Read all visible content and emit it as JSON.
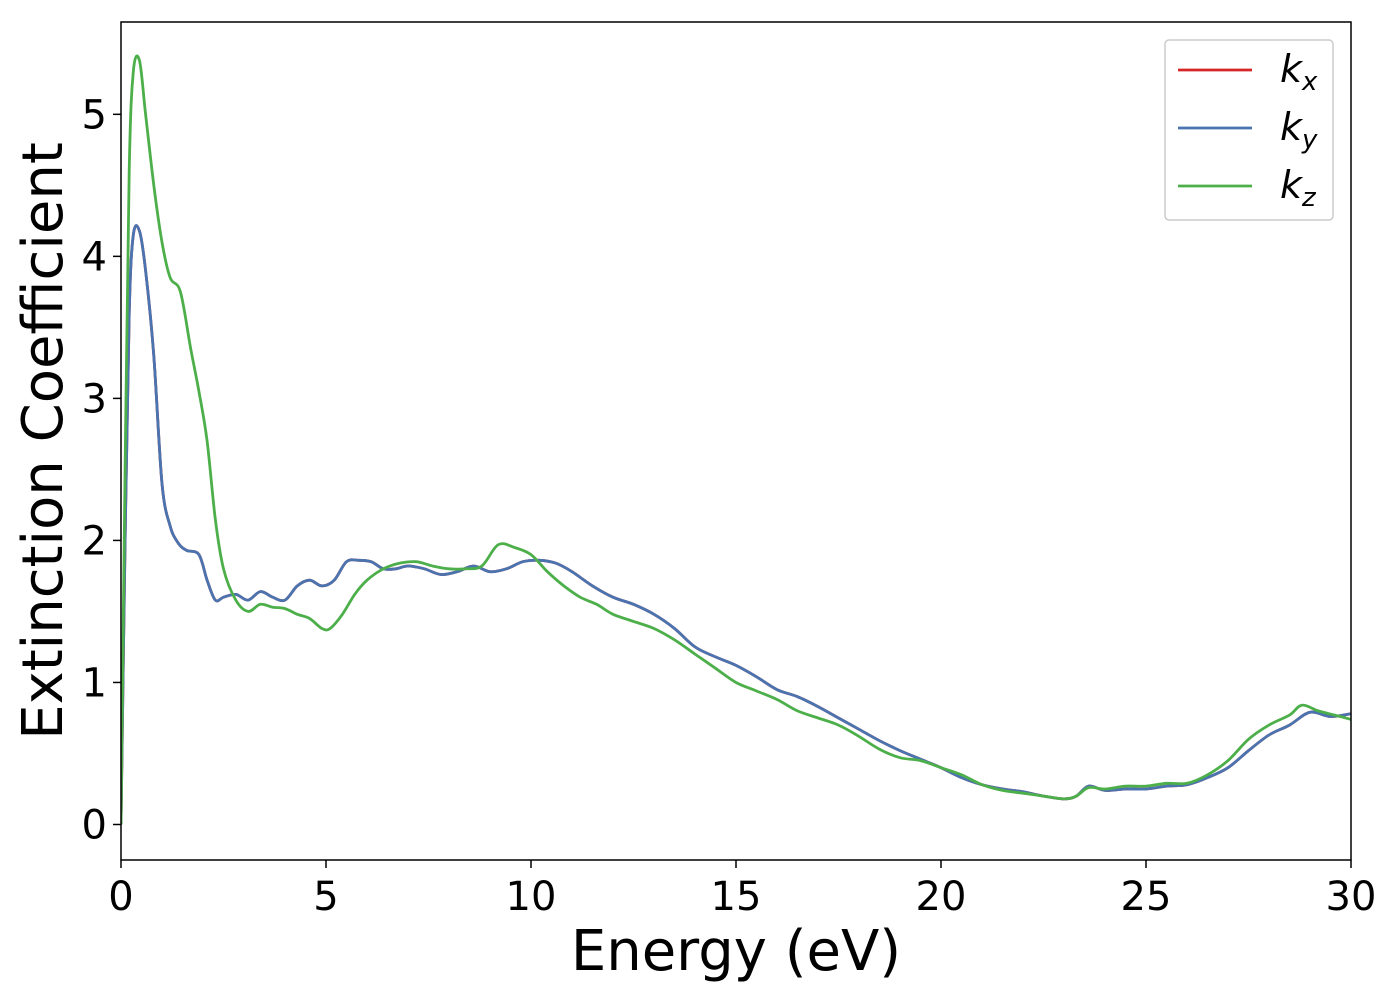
{
  "chart_data": {
    "type": "line",
    "title": "",
    "xlabel": "Energy (eV)",
    "ylabel": "Extinction Coefficient",
    "xlim": [
      0,
      30
    ],
    "ylim": [
      -0.25,
      5.65
    ],
    "xticks": [
      0,
      5,
      10,
      15,
      20,
      25,
      30
    ],
    "yticks": [
      0,
      1,
      2,
      3,
      4,
      5
    ],
    "grid": false,
    "legend_position": "top-right",
    "series": [
      {
        "name": "k_x",
        "label_main": "k",
        "label_sub": "x",
        "color": "#d62728",
        "x": [
          0,
          0.1,
          0.2,
          0.3,
          0.45,
          0.6,
          0.8,
          1.0,
          1.2,
          1.4,
          1.6,
          1.9,
          2.1,
          2.3,
          2.5,
          2.8,
          3.1,
          3.4,
          3.7,
          4.0,
          4.3,
          4.6,
          4.9,
          5.2,
          5.5,
          5.8,
          6.1,
          6.4,
          6.7,
          7.0,
          7.4,
          7.8,
          8.2,
          8.6,
          9.0,
          9.4,
          9.8,
          10.2,
          10.6,
          11.0,
          11.5,
          12.0,
          12.5,
          13.0,
          13.5,
          14.0,
          14.5,
          15.0,
          15.5,
          16.0,
          16.5,
          17.0,
          17.5,
          18.0,
          18.5,
          19.0,
          19.5,
          20.0,
          20.5,
          21.0,
          21.5,
          22.0,
          22.5,
          23.0,
          23.3,
          23.6,
          24.0,
          24.5,
          25.0,
          25.5,
          26.0,
          26.5,
          27.0,
          27.5,
          28.0,
          28.5,
          29.0,
          29.5,
          30.0
        ],
        "y": [
          0.0,
          2.0,
          3.6,
          4.15,
          4.18,
          3.9,
          3.3,
          2.4,
          2.1,
          1.98,
          1.93,
          1.9,
          1.72,
          1.58,
          1.6,
          1.62,
          1.58,
          1.64,
          1.6,
          1.58,
          1.68,
          1.72,
          1.68,
          1.72,
          1.85,
          1.86,
          1.85,
          1.8,
          1.8,
          1.82,
          1.8,
          1.76,
          1.78,
          1.82,
          1.78,
          1.8,
          1.85,
          1.86,
          1.84,
          1.78,
          1.68,
          1.6,
          1.55,
          1.48,
          1.38,
          1.25,
          1.18,
          1.12,
          1.04,
          0.95,
          0.9,
          0.83,
          0.75,
          0.67,
          0.59,
          0.52,
          0.46,
          0.4,
          0.33,
          0.28,
          0.25,
          0.23,
          0.2,
          0.18,
          0.2,
          0.27,
          0.24,
          0.25,
          0.25,
          0.27,
          0.28,
          0.33,
          0.4,
          0.52,
          0.63,
          0.7,
          0.79,
          0.76,
          0.78
        ]
      },
      {
        "name": "k_y",
        "label_main": "k",
        "label_sub": "y",
        "color": "#4a74b0",
        "x": [
          0,
          0.1,
          0.2,
          0.3,
          0.45,
          0.6,
          0.8,
          1.0,
          1.2,
          1.4,
          1.6,
          1.9,
          2.1,
          2.3,
          2.5,
          2.8,
          3.1,
          3.4,
          3.7,
          4.0,
          4.3,
          4.6,
          4.9,
          5.2,
          5.5,
          5.8,
          6.1,
          6.4,
          6.7,
          7.0,
          7.4,
          7.8,
          8.2,
          8.6,
          9.0,
          9.4,
          9.8,
          10.2,
          10.6,
          11.0,
          11.5,
          12.0,
          12.5,
          13.0,
          13.5,
          14.0,
          14.5,
          15.0,
          15.5,
          16.0,
          16.5,
          17.0,
          17.5,
          18.0,
          18.5,
          19.0,
          19.5,
          20.0,
          20.5,
          21.0,
          21.5,
          22.0,
          22.5,
          23.0,
          23.3,
          23.6,
          24.0,
          24.5,
          25.0,
          25.5,
          26.0,
          26.5,
          27.0,
          27.5,
          28.0,
          28.5,
          29.0,
          29.5,
          30.0
        ],
        "y": [
          0.0,
          2.0,
          3.6,
          4.15,
          4.18,
          3.9,
          3.3,
          2.4,
          2.1,
          1.98,
          1.93,
          1.9,
          1.72,
          1.58,
          1.6,
          1.62,
          1.58,
          1.64,
          1.6,
          1.58,
          1.68,
          1.72,
          1.68,
          1.72,
          1.85,
          1.86,
          1.85,
          1.8,
          1.8,
          1.82,
          1.8,
          1.76,
          1.78,
          1.82,
          1.78,
          1.8,
          1.85,
          1.86,
          1.84,
          1.78,
          1.68,
          1.6,
          1.55,
          1.48,
          1.38,
          1.25,
          1.18,
          1.12,
          1.04,
          0.95,
          0.9,
          0.83,
          0.75,
          0.67,
          0.59,
          0.52,
          0.46,
          0.4,
          0.33,
          0.28,
          0.25,
          0.23,
          0.2,
          0.18,
          0.2,
          0.27,
          0.24,
          0.25,
          0.25,
          0.27,
          0.28,
          0.33,
          0.4,
          0.52,
          0.63,
          0.7,
          0.79,
          0.76,
          0.78
        ]
      },
      {
        "name": "k_z",
        "label_main": "k",
        "label_sub": "z",
        "color": "#4daf4a",
        "x": [
          0,
          0.1,
          0.2,
          0.3,
          0.45,
          0.6,
          0.8,
          1.0,
          1.2,
          1.45,
          1.7,
          1.9,
          2.1,
          2.3,
          2.5,
          2.8,
          3.1,
          3.4,
          3.7,
          4.0,
          4.3,
          4.6,
          4.9,
          5.1,
          5.4,
          5.7,
          6.0,
          6.4,
          6.8,
          7.2,
          7.6,
          8.0,
          8.4,
          8.8,
          9.2,
          9.6,
          10.0,
          10.4,
          10.8,
          11.2,
          11.6,
          12.0,
          12.5,
          13.0,
          13.5,
          14.0,
          14.5,
          15.0,
          15.5,
          16.0,
          16.5,
          17.0,
          17.5,
          18.0,
          18.5,
          19.0,
          19.5,
          20.0,
          20.5,
          21.0,
          21.5,
          22.0,
          22.5,
          23.0,
          23.3,
          23.6,
          24.0,
          24.5,
          25.0,
          25.5,
          26.0,
          26.5,
          27.0,
          27.5,
          28.0,
          28.5,
          28.8,
          29.2,
          29.6,
          30.0
        ],
        "y": [
          0.0,
          2.5,
          4.6,
          5.3,
          5.38,
          5.0,
          4.5,
          4.1,
          3.85,
          3.75,
          3.35,
          3.05,
          2.7,
          2.15,
          1.8,
          1.58,
          1.5,
          1.55,
          1.53,
          1.52,
          1.48,
          1.45,
          1.38,
          1.38,
          1.48,
          1.62,
          1.72,
          1.8,
          1.84,
          1.85,
          1.82,
          1.8,
          1.8,
          1.82,
          1.97,
          1.95,
          1.9,
          1.78,
          1.68,
          1.6,
          1.55,
          1.48,
          1.43,
          1.38,
          1.3,
          1.2,
          1.1,
          1.0,
          0.94,
          0.88,
          0.8,
          0.75,
          0.7,
          0.62,
          0.53,
          0.47,
          0.45,
          0.4,
          0.35,
          0.28,
          0.24,
          0.22,
          0.2,
          0.18,
          0.2,
          0.26,
          0.25,
          0.27,
          0.27,
          0.29,
          0.29,
          0.35,
          0.45,
          0.6,
          0.7,
          0.77,
          0.84,
          0.8,
          0.77,
          0.74
        ]
      }
    ]
  }
}
